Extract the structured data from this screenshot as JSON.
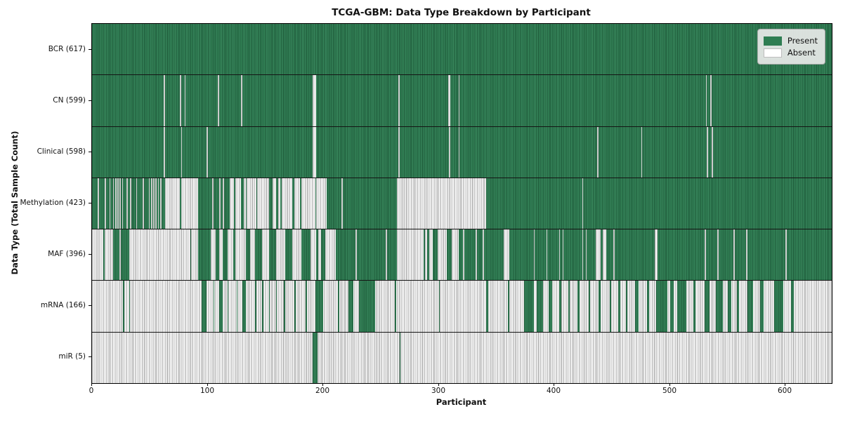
{
  "title": "TCGA-GBM: Data Type Breakdown by Participant",
  "chart_data": {
    "type": "heatmap",
    "title": "TCGA-GBM: Data Type Breakdown by Participant",
    "xlabel": "Participant",
    "ylabel": "Data Type (Total Sample Count)",
    "x_ticks": [
      0,
      100,
      200,
      300,
      400,
      500,
      600
    ],
    "x_slots": 640,
    "grid": false,
    "legend_position": "upper right",
    "legend": [
      {
        "label": "Present",
        "color": "#2e7d52"
      },
      {
        "label": "Absent",
        "color": "#ffffff"
      }
    ],
    "colors": {
      "present": "#2e7d52",
      "present_edge": "#1c5737",
      "absent": "#ffffff",
      "absent_edge": "#9a9a9a",
      "separator": "#141414",
      "legend_bg": "#e9e9e9"
    },
    "rows": [
      {
        "label": "BCR (617)",
        "data_type": "BCR",
        "total_samples": 617,
        "majority": "present",
        "minority_ranges": []
      },
      {
        "label": "CN (599)",
        "data_type": "CN",
        "total_samples": 599,
        "majority": "present",
        "minority_ranges": [
          [
            62,
            1
          ],
          [
            76,
            1
          ],
          [
            80,
            1
          ],
          [
            109,
            1
          ],
          [
            129,
            1
          ],
          [
            191,
            3
          ],
          [
            265,
            1
          ],
          [
            308,
            2
          ],
          [
            317,
            1
          ],
          [
            531,
            1
          ],
          [
            535,
            1
          ]
        ]
      },
      {
        "label": "Clinical (598)",
        "data_type": "Clinical",
        "total_samples": 598,
        "majority": "present",
        "minority_ranges": [
          [
            62,
            1
          ],
          [
            77,
            1
          ],
          [
            99,
            1
          ],
          [
            191,
            3
          ],
          [
            265,
            1
          ],
          [
            309,
            1
          ],
          [
            317,
            1
          ],
          [
            437,
            1
          ],
          [
            475,
            1
          ],
          [
            532,
            1
          ],
          [
            536,
            1
          ]
        ]
      },
      {
        "label": "Methylation (423)",
        "data_type": "Methylation",
        "total_samples": 423,
        "majority": "present",
        "minority_ranges": [
          [
            5,
            1
          ],
          [
            11,
            1
          ],
          [
            15,
            1
          ],
          [
            18,
            1
          ],
          [
            20,
            1
          ],
          [
            22,
            1
          ],
          [
            24,
            1
          ],
          [
            26,
            1
          ],
          [
            30,
            1
          ],
          [
            33,
            1
          ],
          [
            38,
            1
          ],
          [
            44,
            1
          ],
          [
            49,
            1
          ],
          [
            51,
            1
          ],
          [
            53,
            1
          ],
          [
            55,
            1
          ],
          [
            57,
            1
          ],
          [
            59,
            1
          ],
          [
            63,
            13
          ],
          [
            77,
            15
          ],
          [
            104,
            1
          ],
          [
            110,
            1
          ],
          [
            113,
            1
          ],
          [
            119,
            4
          ],
          [
            124,
            5
          ],
          [
            131,
            2
          ],
          [
            134,
            8
          ],
          [
            143,
            10
          ],
          [
            156,
            3
          ],
          [
            161,
            2
          ],
          [
            164,
            9
          ],
          [
            175,
            5
          ],
          [
            181,
            12
          ],
          [
            194,
            9
          ],
          [
            216,
            1
          ],
          [
            264,
            77
          ],
          [
            424,
            1
          ]
        ]
      },
      {
        "label": "MAF (396)",
        "data_type": "MAF",
        "total_samples": 396,
        "majority": "present",
        "minority_ranges": [
          [
            0,
            10
          ],
          [
            11,
            7
          ],
          [
            24,
            1
          ],
          [
            32,
            53
          ],
          [
            86,
            6
          ],
          [
            103,
            4
          ],
          [
            110,
            3
          ],
          [
            117,
            5
          ],
          [
            124,
            9
          ],
          [
            137,
            4
          ],
          [
            147,
            6
          ],
          [
            159,
            8
          ],
          [
            173,
            8
          ],
          [
            189,
            5
          ],
          [
            196,
            2
          ],
          [
            202,
            9
          ],
          [
            228,
            1
          ],
          [
            254,
            1
          ],
          [
            264,
            23
          ],
          [
            288,
            2
          ],
          [
            292,
            3
          ],
          [
            299,
            8
          ],
          [
            311,
            6
          ],
          [
            321,
            1
          ],
          [
            332,
            1
          ],
          [
            338,
            1
          ],
          [
            356,
            5
          ],
          [
            382,
            1
          ],
          [
            393,
            1
          ],
          [
            404,
            1
          ],
          [
            407,
            1
          ],
          [
            424,
            1
          ],
          [
            427,
            1
          ],
          [
            436,
            4
          ],
          [
            442,
            3
          ],
          [
            451,
            1
          ],
          [
            487,
            2
          ],
          [
            530,
            1
          ],
          [
            541,
            1
          ],
          [
            555,
            1
          ],
          [
            566,
            1
          ],
          [
            600,
            1
          ]
        ]
      },
      {
        "label": "mRNA (166)",
        "data_type": "mRNA",
        "total_samples": 166,
        "majority": "absent",
        "minority_ranges": [
          [
            27,
            1
          ],
          [
            32,
            1
          ],
          [
            95,
            4
          ],
          [
            105,
            1
          ],
          [
            110,
            3
          ],
          [
            117,
            1
          ],
          [
            125,
            1
          ],
          [
            130,
            3
          ],
          [
            141,
            1
          ],
          [
            147,
            1
          ],
          [
            153,
            1
          ],
          [
            159,
            1
          ],
          [
            166,
            1
          ],
          [
            175,
            1
          ],
          [
            185,
            1
          ],
          [
            193,
            7
          ],
          [
            213,
            1
          ],
          [
            222,
            4
          ],
          [
            231,
            14
          ],
          [
            262,
            1
          ],
          [
            300,
            1
          ],
          [
            341,
            2
          ],
          [
            360,
            1
          ],
          [
            374,
            8
          ],
          [
            385,
            5
          ],
          [
            395,
            3
          ],
          [
            404,
            2
          ],
          [
            412,
            1
          ],
          [
            420,
            2
          ],
          [
            430,
            1
          ],
          [
            438,
            2
          ],
          [
            448,
            1
          ],
          [
            455,
            2
          ],
          [
            462,
            1
          ],
          [
            470,
            3
          ],
          [
            480,
            2
          ],
          [
            488,
            10
          ],
          [
            500,
            3
          ],
          [
            506,
            8
          ],
          [
            520,
            2
          ],
          [
            530,
            4
          ],
          [
            540,
            6
          ],
          [
            550,
            3
          ],
          [
            558,
            2
          ],
          [
            567,
            5
          ],
          [
            578,
            3
          ],
          [
            590,
            8
          ],
          [
            605,
            2
          ]
        ]
      },
      {
        "label": "miR (5)",
        "data_type": "miR",
        "total_samples": 5,
        "majority": "absent",
        "minority_ranges": [
          [
            191,
            4
          ],
          [
            266,
            1
          ]
        ]
      }
    ]
  }
}
